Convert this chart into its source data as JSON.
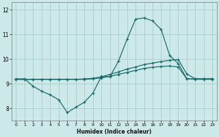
{
  "xlabel": "Humidex (Indice chaleur)",
  "bg_color": "#cce8e8",
  "grid_color": "#aacccc",
  "line_color": "#1a6b6b",
  "xlim": [
    -0.5,
    23.5
  ],
  "ylim": [
    7.5,
    12.3
  ],
  "xticks": [
    0,
    1,
    2,
    3,
    4,
    5,
    6,
    7,
    8,
    9,
    10,
    11,
    12,
    13,
    14,
    15,
    16,
    17,
    18,
    19,
    20,
    21,
    22,
    23
  ],
  "yticks": [
    8,
    9,
    10,
    11,
    12
  ],
  "line1_x": [
    0,
    1,
    2,
    3,
    4,
    5,
    6,
    7,
    8,
    9,
    10,
    11,
    12,
    13,
    14,
    15,
    16,
    17,
    18,
    19,
    20,
    21,
    22,
    23
  ],
  "line1_y": [
    9.2,
    9.2,
    8.9,
    8.7,
    8.55,
    8.35,
    7.83,
    8.05,
    8.25,
    8.62,
    9.3,
    9.28,
    9.92,
    10.8,
    11.62,
    11.67,
    11.55,
    11.2,
    10.15,
    9.82,
    9.2,
    9.2,
    9.2,
    9.2
  ],
  "line2_x": [
    0,
    1,
    2,
    3,
    4,
    5,
    6,
    7,
    8,
    9,
    10,
    11,
    12,
    13,
    14,
    15,
    16,
    17,
    18,
    19,
    20,
    21,
    22,
    23
  ],
  "line2_y": [
    9.18,
    9.18,
    9.18,
    9.18,
    9.18,
    9.18,
    9.18,
    9.18,
    9.2,
    9.22,
    9.28,
    9.38,
    9.48,
    9.6,
    9.68,
    9.78,
    9.84,
    9.9,
    9.95,
    9.98,
    9.4,
    9.2,
    9.2,
    9.2
  ],
  "line3_x": [
    0,
    1,
    2,
    3,
    4,
    5,
    6,
    7,
    8,
    9,
    10,
    11,
    12,
    13,
    14,
    15,
    16,
    17,
    18,
    19,
    20,
    21,
    22,
    23
  ],
  "line3_y": [
    9.18,
    9.18,
    9.18,
    9.18,
    9.18,
    9.18,
    9.18,
    9.18,
    9.18,
    9.2,
    9.24,
    9.3,
    9.38,
    9.46,
    9.54,
    9.62,
    9.67,
    9.7,
    9.72,
    9.68,
    9.2,
    9.18,
    9.18,
    9.18
  ]
}
